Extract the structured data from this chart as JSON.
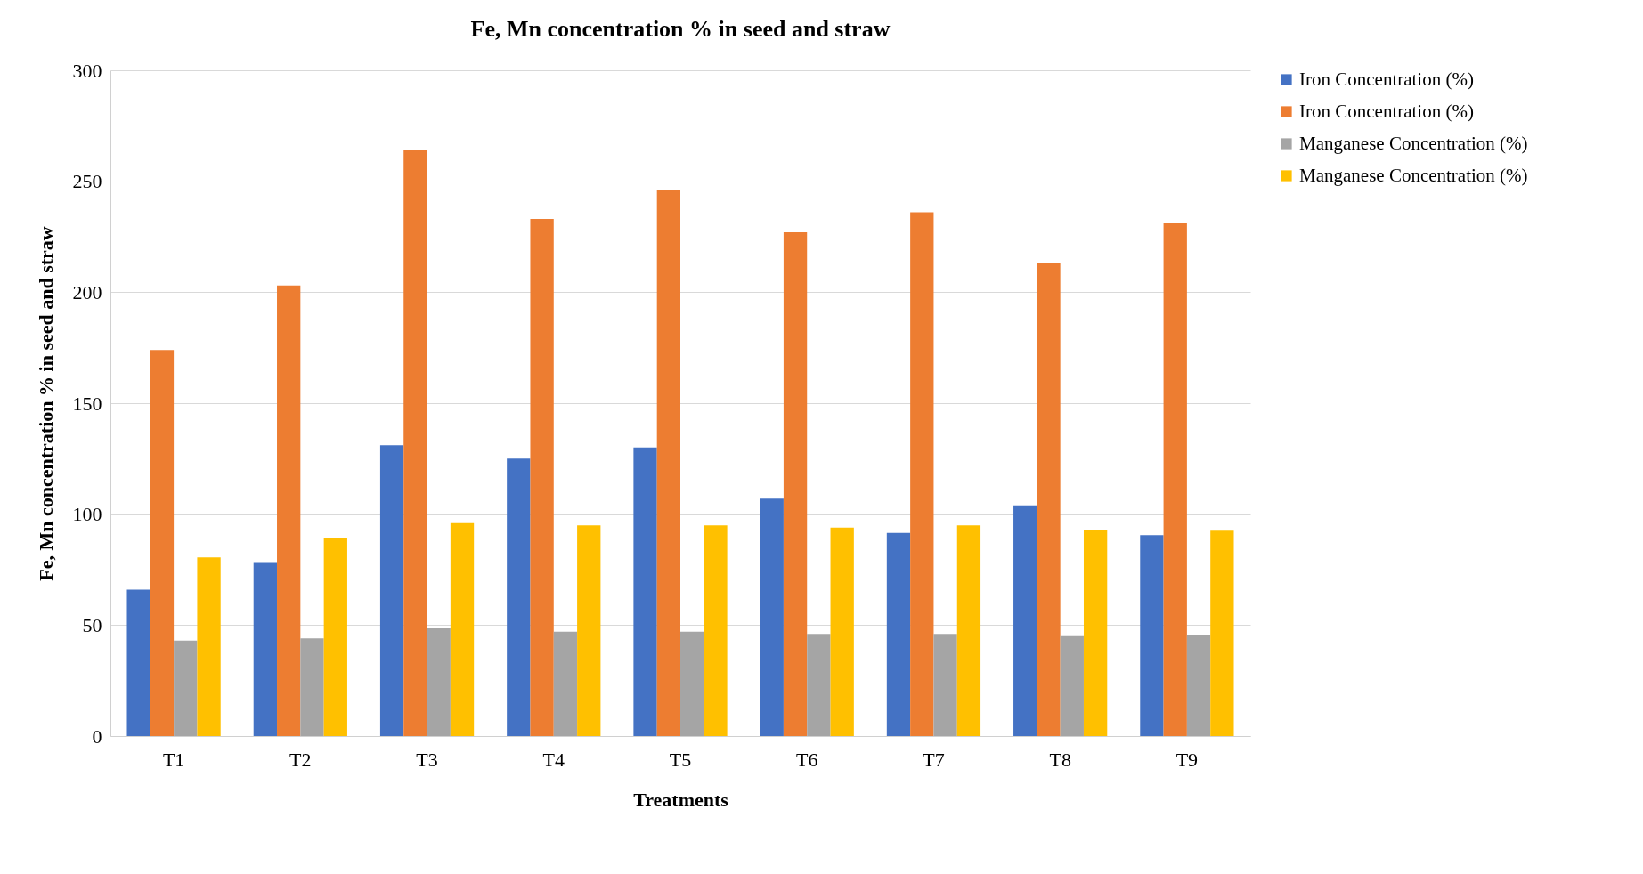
{
  "chart_data": {
    "type": "bar",
    "title": "Fe, Mn concentration % in seed and straw",
    "xlabel": "Treatments",
    "ylabel": "Fe, Mn concentration % in seed and straw",
    "categories": [
      "T1",
      "T2",
      "T3",
      "T4",
      "T5",
      "T6",
      "T7",
      "T8",
      "T9"
    ],
    "series": [
      {
        "name": "Iron Concentration (%)",
        "color": "#4472c4",
        "values": [
          66,
          78,
          131,
          125,
          130,
          107,
          91.5,
          104,
          90.5
        ]
      },
      {
        "name": "Iron Concentration (%)",
        "color": "#ed7d31",
        "values": [
          174,
          203,
          264,
          233,
          246,
          227,
          236,
          213,
          231
        ]
      },
      {
        "name": "Manganese Concentration (%)",
        "color": "#a5a5a5",
        "values": [
          43,
          44,
          48.5,
          47,
          47,
          46,
          46,
          45,
          45.5
        ]
      },
      {
        "name": "Manganese Concentration (%)",
        "color": "#ffc000",
        "values": [
          80.5,
          89,
          96,
          95,
          95,
          94,
          95,
          93,
          92.5
        ]
      }
    ],
    "ylim": [
      0,
      300
    ],
    "yticks": [
      0,
      50,
      100,
      150,
      200,
      250,
      300
    ],
    "grid": "y",
    "legend": "right"
  }
}
